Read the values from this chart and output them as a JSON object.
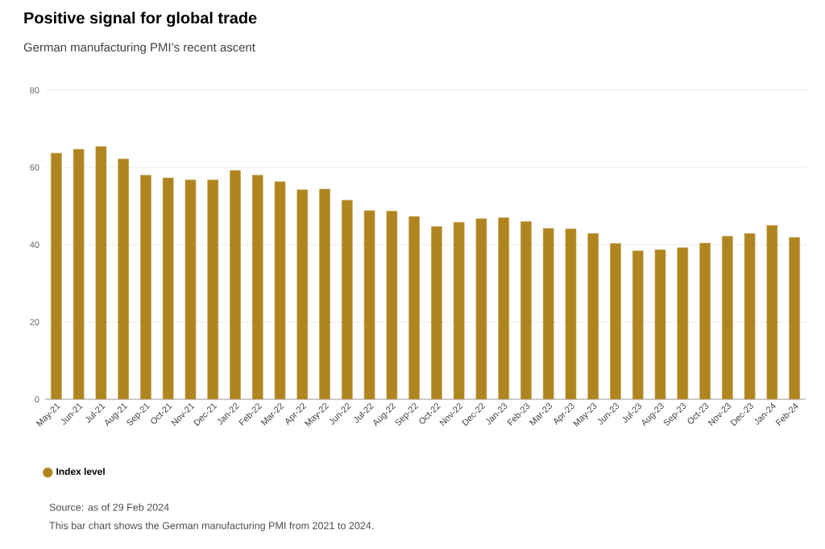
{
  "chart_data": {
    "type": "bar",
    "title": "Positive signal for global trade",
    "subtitle": "German manufacturing PMI’s recent ascent",
    "categories": [
      "May-21",
      "Jun-21",
      "Jul-21",
      "Aug-21",
      "Sep-21",
      "Oct-21",
      "Nov-21",
      "Dec-21",
      "Jan-22",
      "Feb-22",
      "Mar-22",
      "Apr-22",
      "May-22",
      "Jun-22",
      "Jul-22",
      "Aug-22",
      "Sep-22",
      "Oct-22",
      "Nov-22",
      "Dec-22",
      "Jan-23",
      "Feb-23",
      "Mar-23",
      "Apr-23",
      "May-23",
      "Jun-23",
      "Jul-23",
      "Aug-23",
      "Sep-23",
      "Oct-23",
      "Nov-23",
      "Dec-23",
      "Jan-24",
      "Feb-24"
    ],
    "series": [
      {
        "name": "Index level",
        "color": "#b08520",
        "values": [
          63.7,
          64.7,
          65.4,
          62.2,
          58.0,
          57.3,
          56.8,
          56.8,
          59.2,
          58.0,
          56.3,
          54.2,
          54.4,
          51.5,
          48.8,
          48.7,
          47.3,
          44.7,
          45.8,
          46.7,
          47.0,
          46.0,
          44.2,
          44.1,
          42.9,
          40.3,
          38.4,
          38.7,
          39.2,
          40.4,
          42.2,
          42.9,
          45.0,
          41.9
        ]
      }
    ],
    "ylim": [
      0,
      80
    ],
    "yticks": [
      0,
      20,
      40,
      60,
      80
    ],
    "grid": "y",
    "legend": "bottom left",
    "annotations": [
      "Source: as of 29 Feb 2024",
      "This bar chart shows the German manufacturing PMI from 2021 to 2024."
    ]
  }
}
